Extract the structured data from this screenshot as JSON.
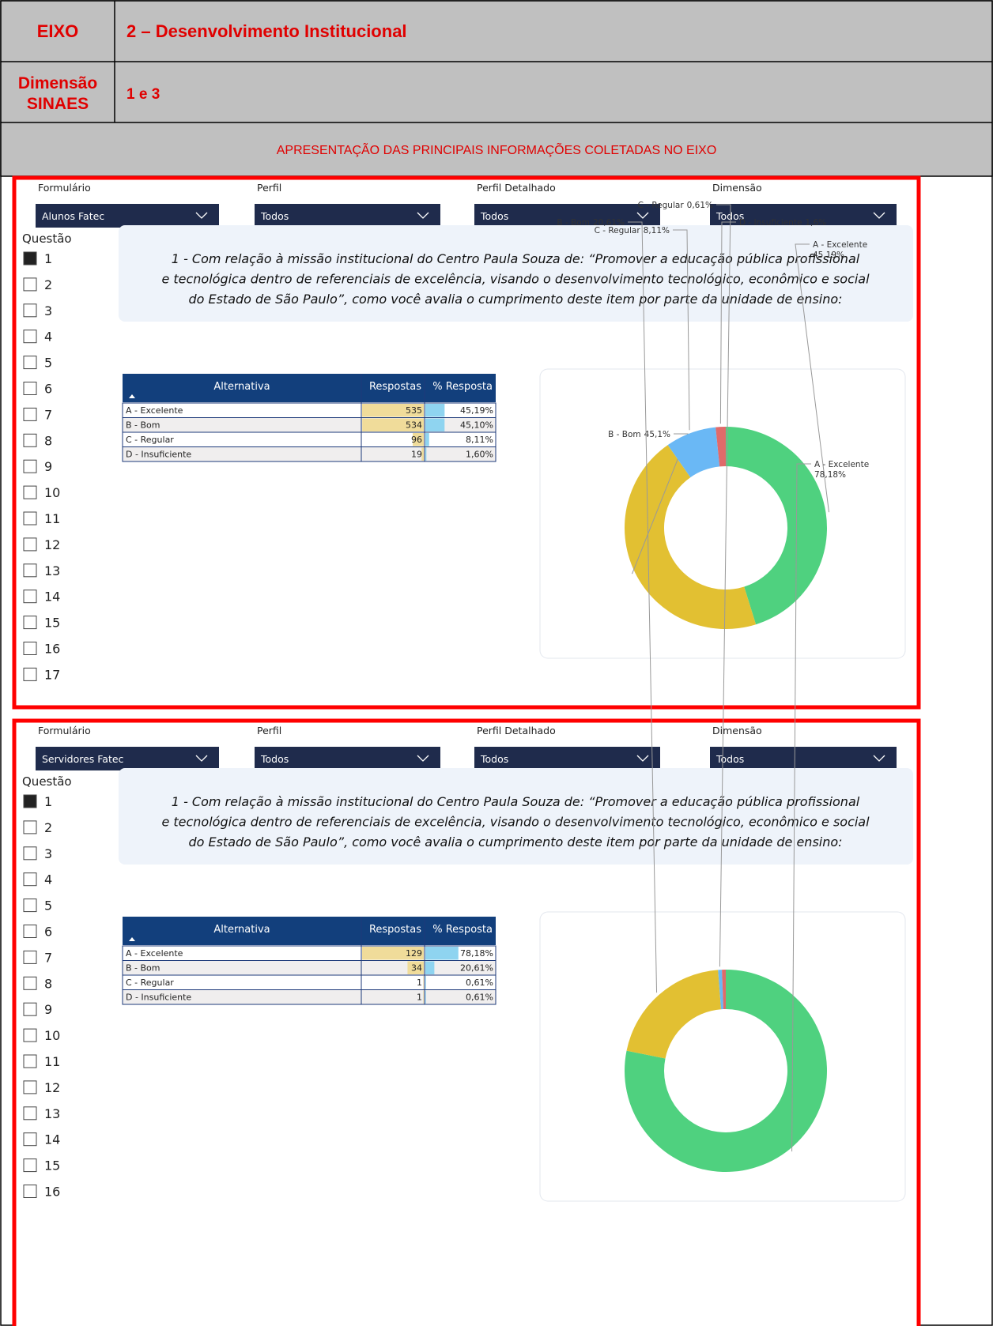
{
  "header": {
    "eixo_label": "EIXO",
    "eixo_value": "2 – Desenvolvimento Institucional",
    "dim_label": [
      "Dimensão",
      "SINAES"
    ],
    "dim_value": "1 e 3",
    "section_title": "APRESENTAÇÃO DAS PRINCIPAIS INFORMAÇÕES COLETADAS NO EIXO"
  },
  "panels": [
    {
      "filters": [
        {
          "label": "Formulário",
          "value": "Alunos Fatec"
        },
        {
          "label": "Perfil",
          "value": "Todos"
        },
        {
          "label": "Perfil Detalhado",
          "value": "Todos"
        },
        {
          "label": "Dimensão",
          "value": "Todos"
        }
      ],
      "questao_label": "Questão",
      "questions": [
        1,
        2,
        3,
        4,
        5,
        6,
        7,
        8,
        9,
        10,
        11,
        12,
        13,
        14,
        15,
        16,
        17
      ],
      "selected": 1,
      "question_text": [
        "1 - Com relação à missão institucional do Centro Paula Souza de: “Promover a educação pública profissional",
        "e tecnológica dentro de referenciais de excelência, visando o desenvolvimento tecnológico, econômico e social",
        "do Estado de São Paulo”, como você avalia o cumprimento deste item por parte da unidade de ensino:"
      ],
      "table": {
        "columns": [
          "Alternativa",
          "Respostas",
          "% Resposta"
        ],
        "rows": [
          [
            "A - Excelente",
            535,
            "45,19%"
          ],
          [
            "B - Bom",
            534,
            "45,10%"
          ],
          [
            "C - Regular",
            96,
            "8,11%"
          ],
          [
            "D - Insuficiente",
            19,
            "1,60%"
          ]
        ]
      },
      "chart": {
        "type": "donut",
        "categories": [
          "A - Excelente",
          "B - Bom",
          "C - Regular",
          "D - Insuficiente"
        ],
        "values": [
          45.19,
          45.1,
          8.11,
          1.6
        ],
        "value_labels": [
          "45,19%",
          "45,1%",
          "8,11%",
          "1,6%"
        ],
        "colors": [
          "#4fd17f",
          "#e2c032",
          "#6ab8f5",
          "#e06a6a"
        ]
      }
    },
    {
      "filters": [
        {
          "label": "Formulário",
          "value": "Servidores Fatec"
        },
        {
          "label": "Perfil",
          "value": "Todos"
        },
        {
          "label": "Perfil Detalhado",
          "value": "Todos"
        },
        {
          "label": "Dimensão",
          "value": "Todos"
        }
      ],
      "questao_label": "Questão",
      "questions": [
        1,
        2,
        3,
        4,
        5,
        6,
        7,
        8,
        9,
        10,
        11,
        12,
        13,
        14,
        15,
        16
      ],
      "selected": 1,
      "question_text": [
        "1 - Com relação à missão institucional do Centro Paula Souza de: “Promover a educação pública profissional",
        "e tecnológica dentro de referenciais de excelência, visando o desenvolvimento tecnológico, econômico e social",
        "do Estado de São Paulo”, como você avalia o cumprimento deste item por parte da unidade de ensino:"
      ],
      "table": {
        "columns": [
          "Alternativa",
          "Respostas",
          "% Resposta"
        ],
        "rows": [
          [
            "A - Excelente",
            129,
            "78,18%"
          ],
          [
            "B - Bom",
            34,
            "20,61%"
          ],
          [
            "C - Regular",
            1,
            "0,61%"
          ],
          [
            "D - Insuficiente",
            1,
            "0,61%"
          ]
        ]
      },
      "chart": {
        "type": "donut",
        "categories": [
          "A - Excelente",
          "B - Bom",
          "C - Regular",
          "D - Insuficiente"
        ],
        "values": [
          78.18,
          20.61,
          0.61,
          0.61
        ],
        "value_labels": [
          "78,18%",
          "20,61%",
          "0,61%",
          null
        ],
        "colors": [
          "#4fd17f",
          "#e2c032",
          "#6ab8f5",
          "#e06a6a"
        ]
      }
    }
  ]
}
